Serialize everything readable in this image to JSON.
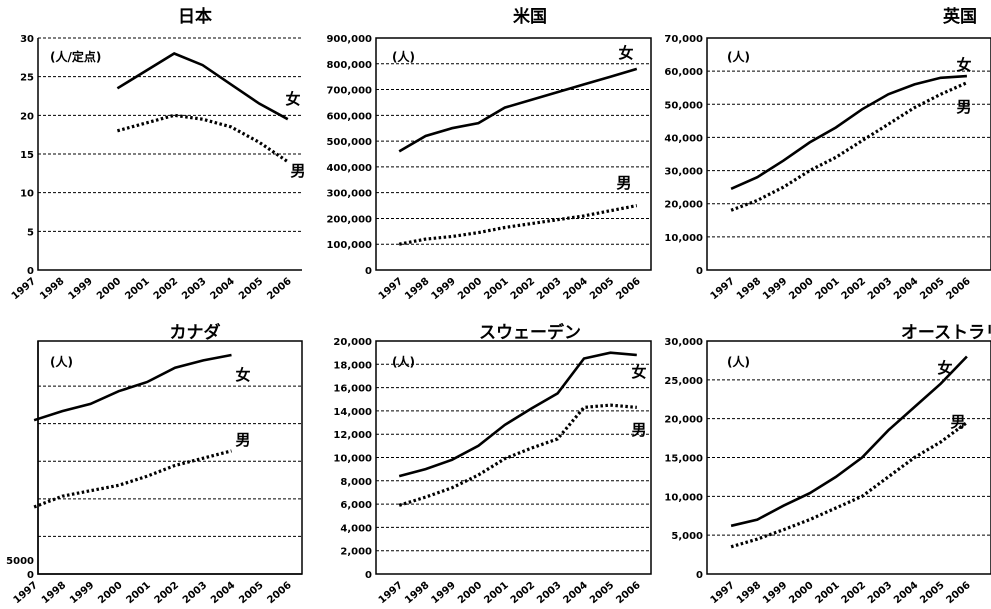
{
  "chart_data": [
    {
      "type": "line",
      "title": "日本",
      "unit_label": "(人/定点)",
      "x": [
        "1997",
        "1998",
        "1999",
        "2000",
        "2001",
        "2002",
        "2003",
        "2004",
        "2005",
        "2006"
      ],
      "ylim": [
        0,
        30
      ],
      "yticks": [
        0,
        5,
        10,
        15,
        20,
        25,
        30
      ],
      "ytick_labels": [
        "0",
        "5",
        "10",
        "15",
        "20",
        "25",
        "30"
      ],
      "grid": "horizontal dashed",
      "series": [
        {
          "name": "女",
          "style": "solid",
          "x": [
            "2000",
            "2002",
            "2003",
            "2004",
            "2005",
            "2006"
          ],
          "values": [
            23.5,
            28,
            26.5,
            24,
            21.5,
            19.5
          ]
        },
        {
          "name": "男",
          "style": "dotted",
          "x": [
            "2000",
            "2002",
            "2003",
            "2004",
            "2005",
            "2006"
          ],
          "values": [
            18,
            20,
            19.5,
            18.5,
            16.5,
            14
          ]
        }
      ]
    },
    {
      "type": "line",
      "title": "米国",
      "unit_label": "(人)",
      "x": [
        "1997",
        "1998",
        "1999",
        "2000",
        "2001",
        "2002",
        "2003",
        "2004",
        "2005",
        "2006"
      ],
      "ylim": [
        0,
        900000
      ],
      "yticks": [
        0,
        100000,
        200000,
        300000,
        400000,
        500000,
        600000,
        700000,
        800000,
        900000
      ],
      "ytick_labels": [
        "0",
        "100,000",
        "200,000",
        "300,000",
        "400,000",
        "500,000",
        "600,000",
        "700,000",
        "800,000",
        "900,000"
      ],
      "grid": "horizontal dashed",
      "series": [
        {
          "name": "女",
          "style": "solid",
          "x": [
            "1997",
            "1998",
            "1999",
            "2000",
            "2001",
            "2002",
            "2003",
            "2004",
            "2005",
            "2006"
          ],
          "values": [
            460000,
            520000,
            550000,
            570000,
            630000,
            660000,
            690000,
            720000,
            750000,
            780000
          ]
        },
        {
          "name": "男",
          "style": "dotted",
          "x": [
            "1997",
            "1998",
            "1999",
            "2000",
            "2001",
            "2002",
            "2003",
            "2004",
            "2005",
            "2006"
          ],
          "values": [
            100000,
            120000,
            130000,
            145000,
            165000,
            180000,
            195000,
            210000,
            230000,
            250000
          ]
        }
      ]
    },
    {
      "type": "line",
      "title": "英国",
      "unit_label": "(人)",
      "x": [
        "1997",
        "1998",
        "1999",
        "2000",
        "2001",
        "2002",
        "2003",
        "2004",
        "2005",
        "2006"
      ],
      "ylim": [
        0,
        70000
      ],
      "yticks": [
        0,
        10000,
        20000,
        30000,
        40000,
        50000,
        60000,
        70000
      ],
      "ytick_labels": [
        "0",
        "10,000",
        "20,000",
        "30,000",
        "40,000",
        "50,000",
        "60,000",
        "70,000"
      ],
      "grid": "horizontal dashed",
      "series": [
        {
          "name": "女",
          "style": "solid",
          "x": [
            "1997",
            "1998",
            "1999",
            "2000",
            "2001",
            "2002",
            "2003",
            "2004",
            "2005",
            "2006"
          ],
          "values": [
            24500,
            28000,
            33000,
            38500,
            43000,
            48500,
            53000,
            56000,
            58000,
            58500
          ]
        },
        {
          "name": "男",
          "style": "dotted",
          "x": [
            "1997",
            "1998",
            "1999",
            "2000",
            "2001",
            "2002",
            "2003",
            "2004",
            "2005",
            "2006"
          ],
          "values": [
            18000,
            21000,
            25000,
            30000,
            34000,
            39000,
            44000,
            49000,
            53000,
            56500
          ]
        }
      ]
    },
    {
      "type": "line",
      "title": "カナダ",
      "unit_label": "(人)",
      "x": [
        "1997",
        "1998",
        "1999",
        "2000",
        "2001",
        "2002",
        "2003",
        "2004",
        "2005",
        "2006"
      ],
      "ylim": [
        0,
        60000
      ],
      "yticks": [
        0,
        5000
      ],
      "ytick_labels": [
        "0",
        "5000"
      ],
      "grid": "horizontal dashed",
      "series": [
        {
          "name": "女",
          "style": "solid",
          "x": [
            "1997",
            "1998",
            "1999",
            "2000",
            "2001",
            "2002",
            "2003",
            "2004"
          ],
          "values": [
            42500,
            45000,
            47000,
            50500,
            53000,
            57000,
            59000,
            60500
          ]
        },
        {
          "name": "男",
          "style": "dotted",
          "x": [
            "1997",
            "1998",
            "1999",
            "2000",
            "2001",
            "2002",
            "2003",
            "2004"
          ],
          "values": [
            18500,
            21500,
            23000,
            24500,
            27000,
            30000,
            32000,
            34000
          ]
        }
      ]
    },
    {
      "type": "line",
      "title": "スウェーデン",
      "unit_label": "(人)",
      "x": [
        "1997",
        "1998",
        "1999",
        "2000",
        "2001",
        "2002",
        "2003",
        "2004",
        "2005",
        "2006"
      ],
      "ylim": [
        0,
        20000
      ],
      "yticks": [
        0,
        2000,
        4000,
        6000,
        8000,
        10000,
        12000,
        14000,
        16000,
        18000,
        20000
      ],
      "ytick_labels": [
        "0",
        "2,000",
        "4,000",
        "6,000",
        "8,000",
        "10,000",
        "12,000",
        "14,000",
        "16,000",
        "18,000",
        "20,000"
      ],
      "grid": "horizontal dashed",
      "series": [
        {
          "name": "女",
          "style": "solid",
          "x": [
            "1997",
            "1998",
            "1999",
            "2000",
            "2001",
            "2002",
            "2003",
            "2004",
            "2005",
            "2006"
          ],
          "values": [
            8400,
            9000,
            9800,
            11000,
            12800,
            14200,
            15500,
            18500,
            19000,
            18800
          ]
        },
        {
          "name": "男",
          "style": "dotted",
          "x": [
            "1997",
            "1998",
            "1999",
            "2000",
            "2001",
            "2002",
            "2003",
            "2004",
            "2005",
            "2006"
          ],
          "values": [
            5900,
            6600,
            7400,
            8500,
            9900,
            10800,
            11600,
            14300,
            14500,
            14300
          ]
        }
      ]
    },
    {
      "type": "line",
      "title": "オーストラリア",
      "unit_label": "(人)",
      "x": [
        "1997",
        "1998",
        "1999",
        "2000",
        "2001",
        "2002",
        "2003",
        "2004",
        "2005",
        "2006"
      ],
      "ylim": [
        0,
        30000
      ],
      "yticks": [
        0,
        5000,
        10000,
        15000,
        20000,
        25000,
        30000
      ],
      "ytick_labels": [
        "0",
        "5,000",
        "10,000",
        "15,000",
        "20,000",
        "25,000",
        "30,000"
      ],
      "grid": "horizontal dashed",
      "series": [
        {
          "name": "女",
          "style": "solid",
          "x": [
            "1997",
            "1998",
            "1999",
            "2000",
            "2001",
            "2002",
            "2003",
            "2004",
            "2005",
            "2006"
          ],
          "values": [
            6200,
            7000,
            8800,
            10400,
            12500,
            15000,
            18500,
            21500,
            24500,
            28000
          ]
        },
        {
          "name": "男",
          "style": "dotted",
          "x": [
            "1997",
            "1998",
            "1999",
            "2000",
            "2001",
            "2002",
            "2003",
            "2004",
            "2005",
            "2006"
          ],
          "values": [
            3500,
            4500,
            5700,
            7000,
            8500,
            10000,
            12500,
            15000,
            17000,
            19500
          ]
        }
      ]
    }
  ]
}
